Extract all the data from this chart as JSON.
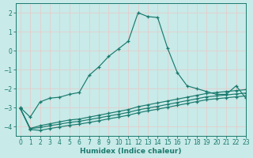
{
  "xlabel": "Humidex (Indice chaleur)",
  "xlim": [
    -0.5,
    23
  ],
  "ylim": [
    -4.5,
    2.5
  ],
  "yticks": [
    -4,
    -3,
    -2,
    -1,
    0,
    1,
    2
  ],
  "xticks": [
    0,
    1,
    2,
    3,
    4,
    5,
    6,
    7,
    8,
    9,
    10,
    11,
    12,
    13,
    14,
    15,
    16,
    17,
    18,
    19,
    20,
    21,
    22,
    23
  ],
  "background_color": "#c8eae8",
  "grid_color": "#e0f0ee",
  "line_color": "#1a7a6e",
  "line1_x": [
    0,
    1,
    2,
    3,
    4,
    5,
    6,
    7,
    8,
    9,
    10,
    11,
    12,
    13,
    14,
    15,
    16,
    17,
    18,
    19,
    20,
    21,
    22,
    23
  ],
  "line1_y": [
    -3.0,
    -3.5,
    -2.7,
    -2.5,
    -2.45,
    -2.3,
    -2.2,
    -1.3,
    -0.85,
    -0.3,
    0.1,
    0.5,
    2.0,
    1.8,
    1.75,
    0.15,
    -1.15,
    -1.85,
    -2.0,
    -2.15,
    -2.3,
    -2.3,
    -1.85,
    -2.5
  ],
  "line2_x": [
    0,
    1,
    2,
    3,
    4,
    5,
    6,
    7,
    8,
    9,
    10,
    11,
    12,
    13,
    14,
    15,
    16,
    17,
    18,
    19,
    20,
    21,
    22,
    23
  ],
  "line2_y": [
    -3.05,
    -4.1,
    -3.95,
    -3.85,
    -3.75,
    -3.65,
    -3.6,
    -3.5,
    -3.4,
    -3.3,
    -3.2,
    -3.1,
    -2.95,
    -2.85,
    -2.75,
    -2.65,
    -2.55,
    -2.45,
    -2.35,
    -2.25,
    -2.2,
    -2.15,
    -2.1,
    -2.05
  ],
  "line3_x": [
    0,
    1,
    2,
    3,
    4,
    5,
    6,
    7,
    8,
    9,
    10,
    11,
    12,
    13,
    14,
    15,
    16,
    17,
    18,
    19,
    20,
    21,
    22,
    23
  ],
  "line3_y": [
    -3.05,
    -4.1,
    -4.05,
    -3.95,
    -3.87,
    -3.78,
    -3.72,
    -3.63,
    -3.54,
    -3.44,
    -3.35,
    -3.25,
    -3.12,
    -3.02,
    -2.93,
    -2.83,
    -2.73,
    -2.63,
    -2.53,
    -2.43,
    -2.38,
    -2.33,
    -2.28,
    -2.23
  ],
  "line4_x": [
    0,
    1,
    2,
    3,
    4,
    5,
    6,
    7,
    8,
    9,
    10,
    11,
    12,
    13,
    14,
    15,
    16,
    17,
    18,
    19,
    20,
    21,
    22,
    23
  ],
  "line4_y": [
    -3.05,
    -4.15,
    -4.2,
    -4.1,
    -4.02,
    -3.93,
    -3.87,
    -3.78,
    -3.69,
    -3.59,
    -3.5,
    -3.4,
    -3.27,
    -3.17,
    -3.08,
    -2.98,
    -2.88,
    -2.78,
    -2.68,
    -2.58,
    -2.53,
    -2.48,
    -2.43,
    -2.38
  ]
}
